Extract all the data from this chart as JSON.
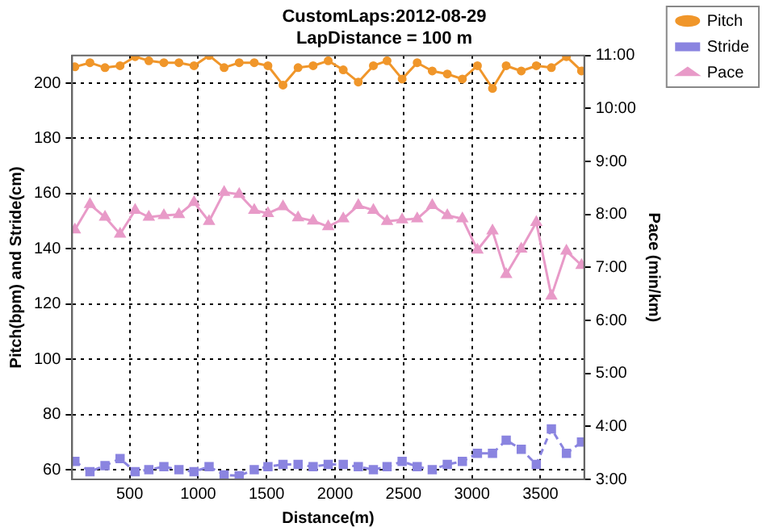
{
  "chart_data": {
    "type": "line",
    "title": "CustomLaps:2012-08-29",
    "subtitle": "LapDistance = 100 m",
    "xlabel": "Distance(m)",
    "ylabel": "Pitch(bpm) and Stride(cm)",
    "y2label": "Pace (min/km)",
    "x": [
      100,
      210,
      320,
      430,
      540,
      640,
      750,
      860,
      970,
      1080,
      1190,
      1300,
      1410,
      1510,
      1620,
      1730,
      1840,
      1950,
      2060,
      2170,
      2280,
      2380,
      2490,
      2600,
      2710,
      2820,
      2930,
      3040,
      3150,
      3250,
      3360,
      3470,
      3580,
      3690,
      3800
    ],
    "series": [
      {
        "name": "Pitch",
        "color": "#f0962a",
        "marker": "circle",
        "line_style": "solid",
        "values": [
          205.9,
          207.4,
          205.6,
          206.3,
          209.6,
          208.1,
          207.4,
          207.4,
          206.3,
          210,
          205.6,
          207.4,
          207.4,
          206.3,
          199.3,
          205.6,
          206.3,
          208.1,
          204.8,
          200.4,
          206.3,
          208.1,
          201.5,
          207.4,
          204.4,
          203.3,
          201.5,
          206.3,
          198.1,
          206.3,
          204.4,
          206.3,
          205.6,
          209.6,
          204.4
        ]
      },
      {
        "name": "Stride",
        "color": "#8a84e0",
        "marker": "square",
        "line_style": "dashed",
        "values": [
          63,
          59.3,
          61.5,
          64,
          59.3,
          60,
          61.1,
          60,
          59.3,
          61.1,
          58.1,
          57.8,
          60,
          61.1,
          61.9,
          61.9,
          61.1,
          61.9,
          61.9,
          61.1,
          60,
          61.1,
          63,
          61.1,
          60,
          61.9,
          63,
          65.9,
          65.9,
          70.7,
          67.4,
          61.9,
          74.8,
          65.9,
          70
        ]
      },
      {
        "name": "Pace",
        "color": "#e89ac8",
        "marker": "triangle",
        "line_style": "solid",
        "axis": "y2",
        "values": [
          7.71,
          8.19,
          7.95,
          7.63,
          8.08,
          7.95,
          7.98,
          8.0,
          8.23,
          7.87,
          8.42,
          8.38,
          8.08,
          8.02,
          8.15,
          7.94,
          7.88,
          7.77,
          7.92,
          8.17,
          8.08,
          7.87,
          7.9,
          7.92,
          8.17,
          7.98,
          7.92,
          7.33,
          7.69,
          6.87,
          7.35,
          7.85,
          6.46,
          7.31,
          7.04
        ]
      }
    ],
    "xlim": [
      80,
      3820
    ],
    "xticks": [
      500,
      1000,
      1500,
      2000,
      2500,
      3000,
      3500
    ],
    "ylim": [
      56.5,
      210
    ],
    "yticks": [
      60,
      80,
      100,
      120,
      140,
      160,
      180,
      200
    ],
    "y2lim": [
      3,
      11
    ],
    "y2ticks": [
      {
        "value": 3,
        "label": "3:00"
      },
      {
        "value": 4,
        "label": "4:00"
      },
      {
        "value": 5,
        "label": "5:00"
      },
      {
        "value": 6,
        "label": "6:00"
      },
      {
        "value": 7,
        "label": "7:00"
      },
      {
        "value": 8,
        "label": "8:00"
      },
      {
        "value": 9,
        "label": "9:00"
      },
      {
        "value": 10,
        "label": "10:00"
      },
      {
        "value": 11,
        "label": "11:00"
      }
    ],
    "grid": true,
    "legend": "top right"
  }
}
